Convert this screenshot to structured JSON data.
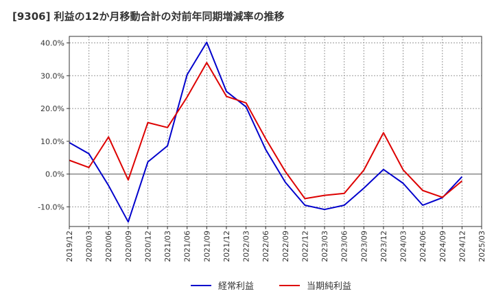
{
  "title": "[9306]  利益の12か月移動合計の対前年同期増減率の推移",
  "chart_data": {
    "type": "line",
    "title": "[9306]  利益の12か月移動合計の対前年同期増減率の推移",
    "xlabel": "",
    "ylabel": "",
    "ylim": [
      -16,
      42
    ],
    "yticks": [
      40,
      30,
      20,
      10,
      0,
      -10
    ],
    "ytick_labels": [
      "40.0%",
      "30.0%",
      "20.0%",
      "10.0%",
      "0.0%",
      "-10.0%"
    ],
    "categories": [
      "2019/12",
      "2020/03",
      "2020/06",
      "2020/09",
      "2020/12",
      "2021/03",
      "2021/06",
      "2021/09",
      "2021/12",
      "2022/03",
      "2022/06",
      "2022/09",
      "2022/12",
      "2023/03",
      "2023/06",
      "2023/09",
      "2023/12",
      "2024/03",
      "2024/06",
      "2024/09",
      "2024/12",
      "2025/03"
    ],
    "legend_position": "bottom",
    "series": [
      {
        "name": "経常利益",
        "color": "#0000cc",
        "values": [
          9.6,
          6.2,
          -3.5,
          -14.6,
          3.7,
          8.6,
          30.3,
          40.2,
          25.2,
          20.5,
          7.5,
          -2.5,
          -9.5,
          -10.8,
          -9.5,
          -4.3,
          1.4,
          -2.8,
          -9.5,
          -7.2,
          -0.8,
          null
        ]
      },
      {
        "name": "当期純利益",
        "color": "#dd0000",
        "values": [
          4.2,
          2.0,
          11.3,
          -1.8,
          15.7,
          14.2,
          23.5,
          34.0,
          23.7,
          21.7,
          10.8,
          0.8,
          -7.5,
          -6.5,
          -5.9,
          1.2,
          12.6,
          1.3,
          -5.0,
          -7.1,
          -2.1,
          null
        ]
      }
    ]
  }
}
